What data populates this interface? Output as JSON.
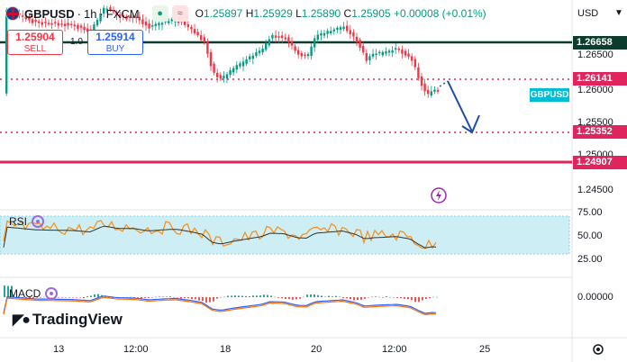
{
  "header": {
    "symbol": "GBPUSD",
    "interval": "1h",
    "exchange": "FXCM",
    "sep": "·",
    "open_label": "O",
    "open": "1.25897",
    "high_label": "H",
    "high": "1.25929",
    "low_label": "L",
    "low": "1.25890",
    "close_label": "C",
    "close": "1.25905",
    "change": "+0.00008 (+0.01%)"
  },
  "trade": {
    "sell_price": "1.25904",
    "sell_label": "SELL",
    "buy_price": "1.25914",
    "buy_label": "BUY",
    "spread": "1.0"
  },
  "price_axis": {
    "currency": "USD",
    "ticks": [
      "1.26500",
      "1.26000",
      "1.25500",
      "1.25000",
      "1.24500"
    ],
    "labels": [
      {
        "text": "1.26658",
        "color": "#0d3b2e"
      },
      {
        "text": "1.26141",
        "color": "#e0245e"
      },
      {
        "text": "GBPUSD",
        "color": "#00bcd4"
      },
      {
        "text": "1.25352",
        "color": "#e0245e"
      },
      {
        "text": "1.24907",
        "color": "#e0245e"
      }
    ]
  },
  "time_axis": {
    "ticks": [
      "13",
      "12:00",
      "18",
      "20",
      "12:00",
      "25"
    ]
  },
  "rsi": {
    "label": "RSI",
    "ticks": [
      "75.00",
      "50.00",
      "25.00"
    ]
  },
  "macd": {
    "label": "MACD",
    "ticks": [
      "0.00000"
    ]
  },
  "brand": {
    "name": "TradingView"
  },
  "colors": {
    "up": "#089981",
    "down": "#f23645",
    "resistance": "#0d3b2e",
    "support": "#e0245e",
    "arrow": "#1e4fa8",
    "rsi_line": "#f7931e",
    "rsi_band": "#b2ebf2",
    "macd_line": "#2962ff",
    "signal_line": "#ff6d00"
  },
  "icons": [
    "flag-icon",
    "market-closed-icon",
    "lightning-icon",
    "settings-icon",
    "chevron-down-icon"
  ]
}
